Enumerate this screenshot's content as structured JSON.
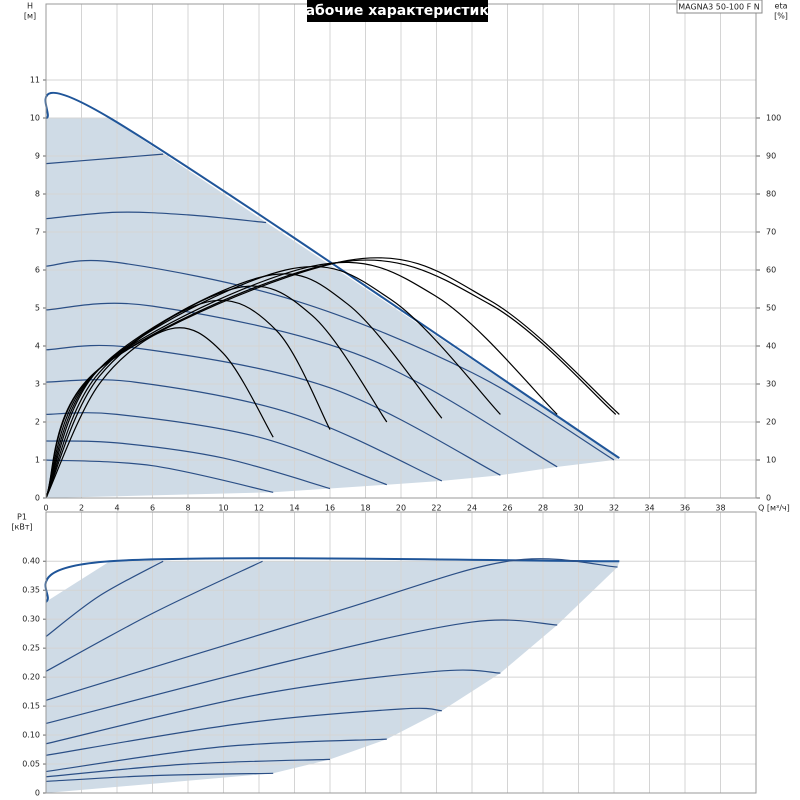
{
  "chart_data": [
    {
      "type": "line",
      "title": "Рабочие характеристики",
      "annotation": "MAGNA3 50-100 F N",
      "y_label": "H",
      "y_unit": "[м]",
      "y2_label": "eta",
      "y2_unit": "[%]",
      "x_label": "Q [м³/ч]",
      "xlim": [
        0,
        40
      ],
      "xticks": [
        0,
        2,
        4,
        6,
        8,
        10,
        12,
        14,
        16,
        18,
        20,
        22,
        24,
        26,
        28,
        30,
        32,
        34,
        36,
        38
      ],
      "ylim": [
        0,
        13
      ],
      "yticks": [
        0,
        1,
        2,
        3,
        4,
        5,
        6,
        7,
        8,
        9,
        10,
        11
      ],
      "y2lim": [
        0,
        130
      ],
      "y2ticks": [
        0,
        10,
        20,
        30,
        40,
        50,
        60,
        70,
        80,
        90,
        100
      ],
      "grid": true,
      "fill": "#cfdbe6",
      "series": [
        {
          "color": "#1f5599",
          "x": [
            0,
            3.6,
            32.3
          ],
          "values": [
            10,
            10,
            1.05
          ]
        },
        {
          "color": "#2b4f86",
          "x": [
            0,
            6,
            12.8
          ],
          "values": [
            1.0,
            0.85,
            0.15
          ]
        },
        {
          "color": "#2b4f86",
          "x": [
            0,
            4,
            10,
            16
          ],
          "values": [
            1.5,
            1.45,
            1.05,
            0.25
          ]
        },
        {
          "color": "#2b4f86",
          "x": [
            0,
            4,
            12,
            19.2
          ],
          "values": [
            2.2,
            2.2,
            1.6,
            0.35
          ]
        },
        {
          "color": "#2b4f86",
          "x": [
            0,
            5,
            14,
            22.3
          ],
          "values": [
            3.05,
            3.05,
            2.2,
            0.45
          ]
        },
        {
          "color": "#2b4f86",
          "x": [
            0,
            5,
            16,
            25.6
          ],
          "values": [
            3.9,
            3.95,
            2.9,
            0.6
          ]
        },
        {
          "color": "#2b4f86",
          "x": [
            0,
            6,
            18,
            28.8
          ],
          "values": [
            4.95,
            5.05,
            3.7,
            0.82
          ]
        },
        {
          "color": "#2b4f86",
          "x": [
            0,
            4,
            14,
            24,
            32
          ],
          "values": [
            6.1,
            6.2,
            5.2,
            3.3,
            1.0
          ]
        },
        {
          "color": "#2b4f86",
          "x": [
            0,
            4,
            8,
            12.4
          ],
          "values": [
            7.35,
            7.52,
            7.45,
            7.25
          ]
        },
        {
          "color": "#2b4f86",
          "x": [
            0,
            4,
            6.6
          ],
          "values": [
            8.8,
            8.95,
            9.05
          ]
        },
        {
          "color": "#000000",
          "axis": "y2",
          "x": [
            0,
            3,
            7,
            10,
            12.8
          ],
          "values": [
            0,
            30,
            44.5,
            38,
            16
          ]
        },
        {
          "color": "#000000",
          "axis": "y2",
          "x": [
            0,
            3,
            9,
            13,
            16
          ],
          "values": [
            0,
            32,
            51.5,
            44,
            18
          ]
        },
        {
          "color": "#000000",
          "axis": "y2",
          "x": [
            0,
            3,
            10.5,
            15,
            19.2
          ],
          "values": [
            0,
            33,
            55,
            48,
            20
          ]
        },
        {
          "color": "#000000",
          "axis": "y2",
          "x": [
            0,
            3,
            12,
            17,
            22.3
          ],
          "values": [
            0,
            34,
            58,
            51,
            21
          ]
        },
        {
          "color": "#000000",
          "axis": "y2",
          "x": [
            0,
            3,
            13.5,
            19.5,
            25.6
          ],
          "values": [
            0,
            34,
            60,
            52,
            22
          ]
        },
        {
          "color": "#000000",
          "axis": "y2",
          "x": [
            0,
            3,
            15,
            22,
            28.8
          ],
          "values": [
            0,
            34,
            61,
            53,
            22
          ]
        },
        {
          "color": "#000000",
          "axis": "y2",
          "x": [
            0,
            3,
            16.5,
            25,
            32.1
          ],
          "values": [
            0,
            34,
            62,
            51,
            22
          ]
        },
        {
          "color": "#000000",
          "axis": "y2",
          "x": [
            0,
            3,
            17,
            25,
            32.3
          ],
          "values": [
            0,
            34,
            62.5,
            52,
            22
          ]
        }
      ]
    },
    {
      "type": "line",
      "y_label": "P1",
      "y_unit": "[кВт]",
      "xlim": [
        0,
        40
      ],
      "xticks": [
        0,
        2,
        4,
        6,
        8,
        10,
        12,
        14,
        16,
        18,
        20,
        22,
        24,
        26,
        28,
        30,
        32,
        34,
        36,
        38
      ],
      "ylim": [
        0,
        0.485
      ],
      "yticks": [
        0,
        0.05,
        {
          "value": 0.1,
          "label": "0.10"
        },
        0.15,
        {
          "value": 0.2,
          "label": "0.20"
        },
        0.25,
        {
          "value": 0.3,
          "label": "0.30"
        },
        0.35,
        {
          "value": 0.4,
          "label": "0.40"
        }
      ],
      "grid": true,
      "fill": "#cfdbe6",
      "series": [
        {
          "color": "#1f5599",
          "x": [
            0,
            3.6,
            32.3
          ],
          "values": [
            0.33,
            0.4,
            0.4
          ]
        },
        {
          "color": "#2b4f86",
          "x": [
            0,
            6,
            12.8
          ],
          "values": [
            0.02,
            0.03,
            0.034
          ]
        },
        {
          "color": "#2b4f86",
          "x": [
            0,
            8,
            16
          ],
          "values": [
            0.028,
            0.05,
            0.058
          ]
        },
        {
          "color": "#2b4f86",
          "x": [
            0,
            10,
            19.2
          ],
          "values": [
            0.037,
            0.08,
            0.093
          ]
        },
        {
          "color": "#2b4f86",
          "x": [
            0,
            11,
            20,
            22.3
          ],
          "values": [
            0.065,
            0.12,
            0.145,
            0.142
          ]
        },
        {
          "color": "#2b4f86",
          "x": [
            0,
            12,
            22,
            25.6
          ],
          "values": [
            0.085,
            0.17,
            0.21,
            0.207
          ]
        },
        {
          "color": "#2b4f86",
          "x": [
            0,
            14,
            24,
            28.8
          ],
          "values": [
            0.12,
            0.23,
            0.295,
            0.29
          ]
        },
        {
          "color": "#2b4f86",
          "x": [
            0,
            16,
            26,
            32.2
          ],
          "values": [
            0.16,
            0.31,
            0.4,
            0.39
          ]
        },
        {
          "color": "#2b4f86",
          "x": [
            0,
            6,
            12.2
          ],
          "values": [
            0.21,
            0.31,
            0.4
          ]
        },
        {
          "color": "#2b4f86",
          "x": [
            0,
            3,
            6.6
          ],
          "values": [
            0.27,
            0.34,
            0.4
          ]
        }
      ]
    }
  ]
}
